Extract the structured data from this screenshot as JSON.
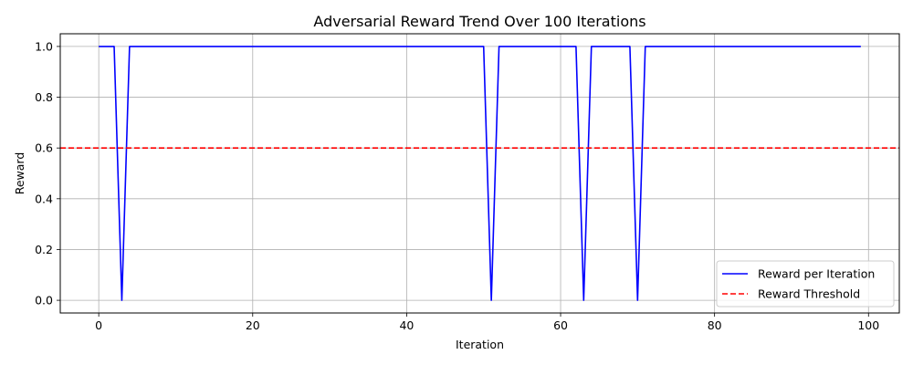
{
  "chart_data": {
    "type": "line",
    "title": "Adversarial Reward Trend Over 100 Iterations",
    "xlabel": "Iteration",
    "ylabel": "Reward",
    "xlim": [
      -5,
      104
    ],
    "ylim": [
      -0.05,
      1.05
    ],
    "xticks": [
      0,
      20,
      40,
      60,
      80,
      100
    ],
    "yticks": [
      0.0,
      0.2,
      0.4,
      0.6,
      0.8,
      1.0
    ],
    "xtick_labels": [
      "0",
      "20",
      "40",
      "60",
      "80",
      "100"
    ],
    "ytick_labels": [
      "0.0",
      "0.2",
      "0.4",
      "0.6",
      "0.8",
      "1.0"
    ],
    "grid": true,
    "legend_position": "bottom-right",
    "series": [
      {
        "name": "Reward per Iteration",
        "color": "#0000ff",
        "style": "solid",
        "x_start": 0,
        "values": [
          1,
          1,
          1,
          0,
          1,
          1,
          1,
          1,
          1,
          1,
          1,
          1,
          1,
          1,
          1,
          1,
          1,
          1,
          1,
          1,
          1,
          1,
          1,
          1,
          1,
          1,
          1,
          1,
          1,
          1,
          1,
          1,
          1,
          1,
          1,
          1,
          1,
          1,
          1,
          1,
          1,
          1,
          1,
          1,
          1,
          1,
          1,
          1,
          1,
          1,
          1,
          0,
          1,
          1,
          1,
          1,
          1,
          1,
          1,
          1,
          1,
          1,
          1,
          0,
          1,
          1,
          1,
          1,
          1,
          1,
          0,
          1,
          1,
          1,
          1,
          1,
          1,
          1,
          1,
          1,
          1,
          1,
          1,
          1,
          1,
          1,
          1,
          1,
          1,
          1,
          1,
          1,
          1,
          1,
          1,
          1,
          1,
          1,
          1,
          1
        ]
      }
    ],
    "hlines": [
      {
        "name": "Reward Threshold",
        "y": 0.6,
        "color": "#ff0000",
        "style": "dashed"
      }
    ]
  }
}
